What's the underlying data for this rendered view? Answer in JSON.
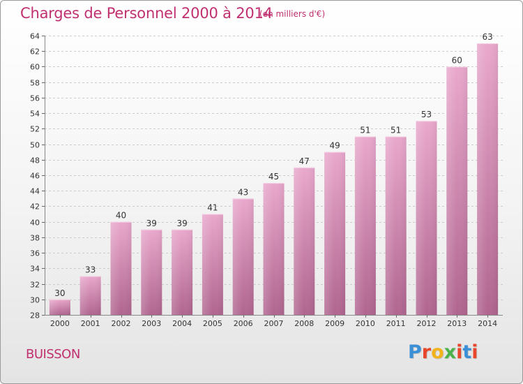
{
  "title": "Charges de Personnel 2000 à 2014",
  "subtitle": "(en milliers d'€)",
  "commune": "BUISSON",
  "logo": {
    "letters": [
      "P",
      "r",
      "o",
      "x",
      "i",
      "t",
      "i"
    ],
    "colors": [
      "#3a8fd6",
      "#e8472b",
      "#f2b21b",
      "#4bb24a",
      "#e8472b",
      "#3a8fd6",
      "#e8472b"
    ]
  },
  "colors": {
    "title": "#c0306f",
    "bar_top": "#e9a8cc",
    "bar_bottom": "#b0658f",
    "grid": "#cccccc"
  },
  "chart_data": {
    "type": "bar",
    "title": "Charges de Personnel 2000 à 2014",
    "subtitle": "(en milliers d'€)",
    "xlabel": "",
    "ylabel": "",
    "categories": [
      "2000",
      "2001",
      "2002",
      "2003",
      "2004",
      "2005",
      "2006",
      "2007",
      "2008",
      "2009",
      "2010",
      "2011",
      "2012",
      "2013",
      "2014"
    ],
    "values": [
      30,
      33,
      40,
      39,
      39,
      41,
      43,
      45,
      47,
      49,
      51,
      51,
      53,
      60,
      63
    ],
    "ylim": [
      28,
      64
    ],
    "yticks": [
      28,
      30,
      32,
      34,
      36,
      38,
      40,
      42,
      44,
      46,
      48,
      50,
      52,
      54,
      56,
      58,
      60,
      62,
      64
    ],
    "grid": true,
    "legend": "none"
  }
}
